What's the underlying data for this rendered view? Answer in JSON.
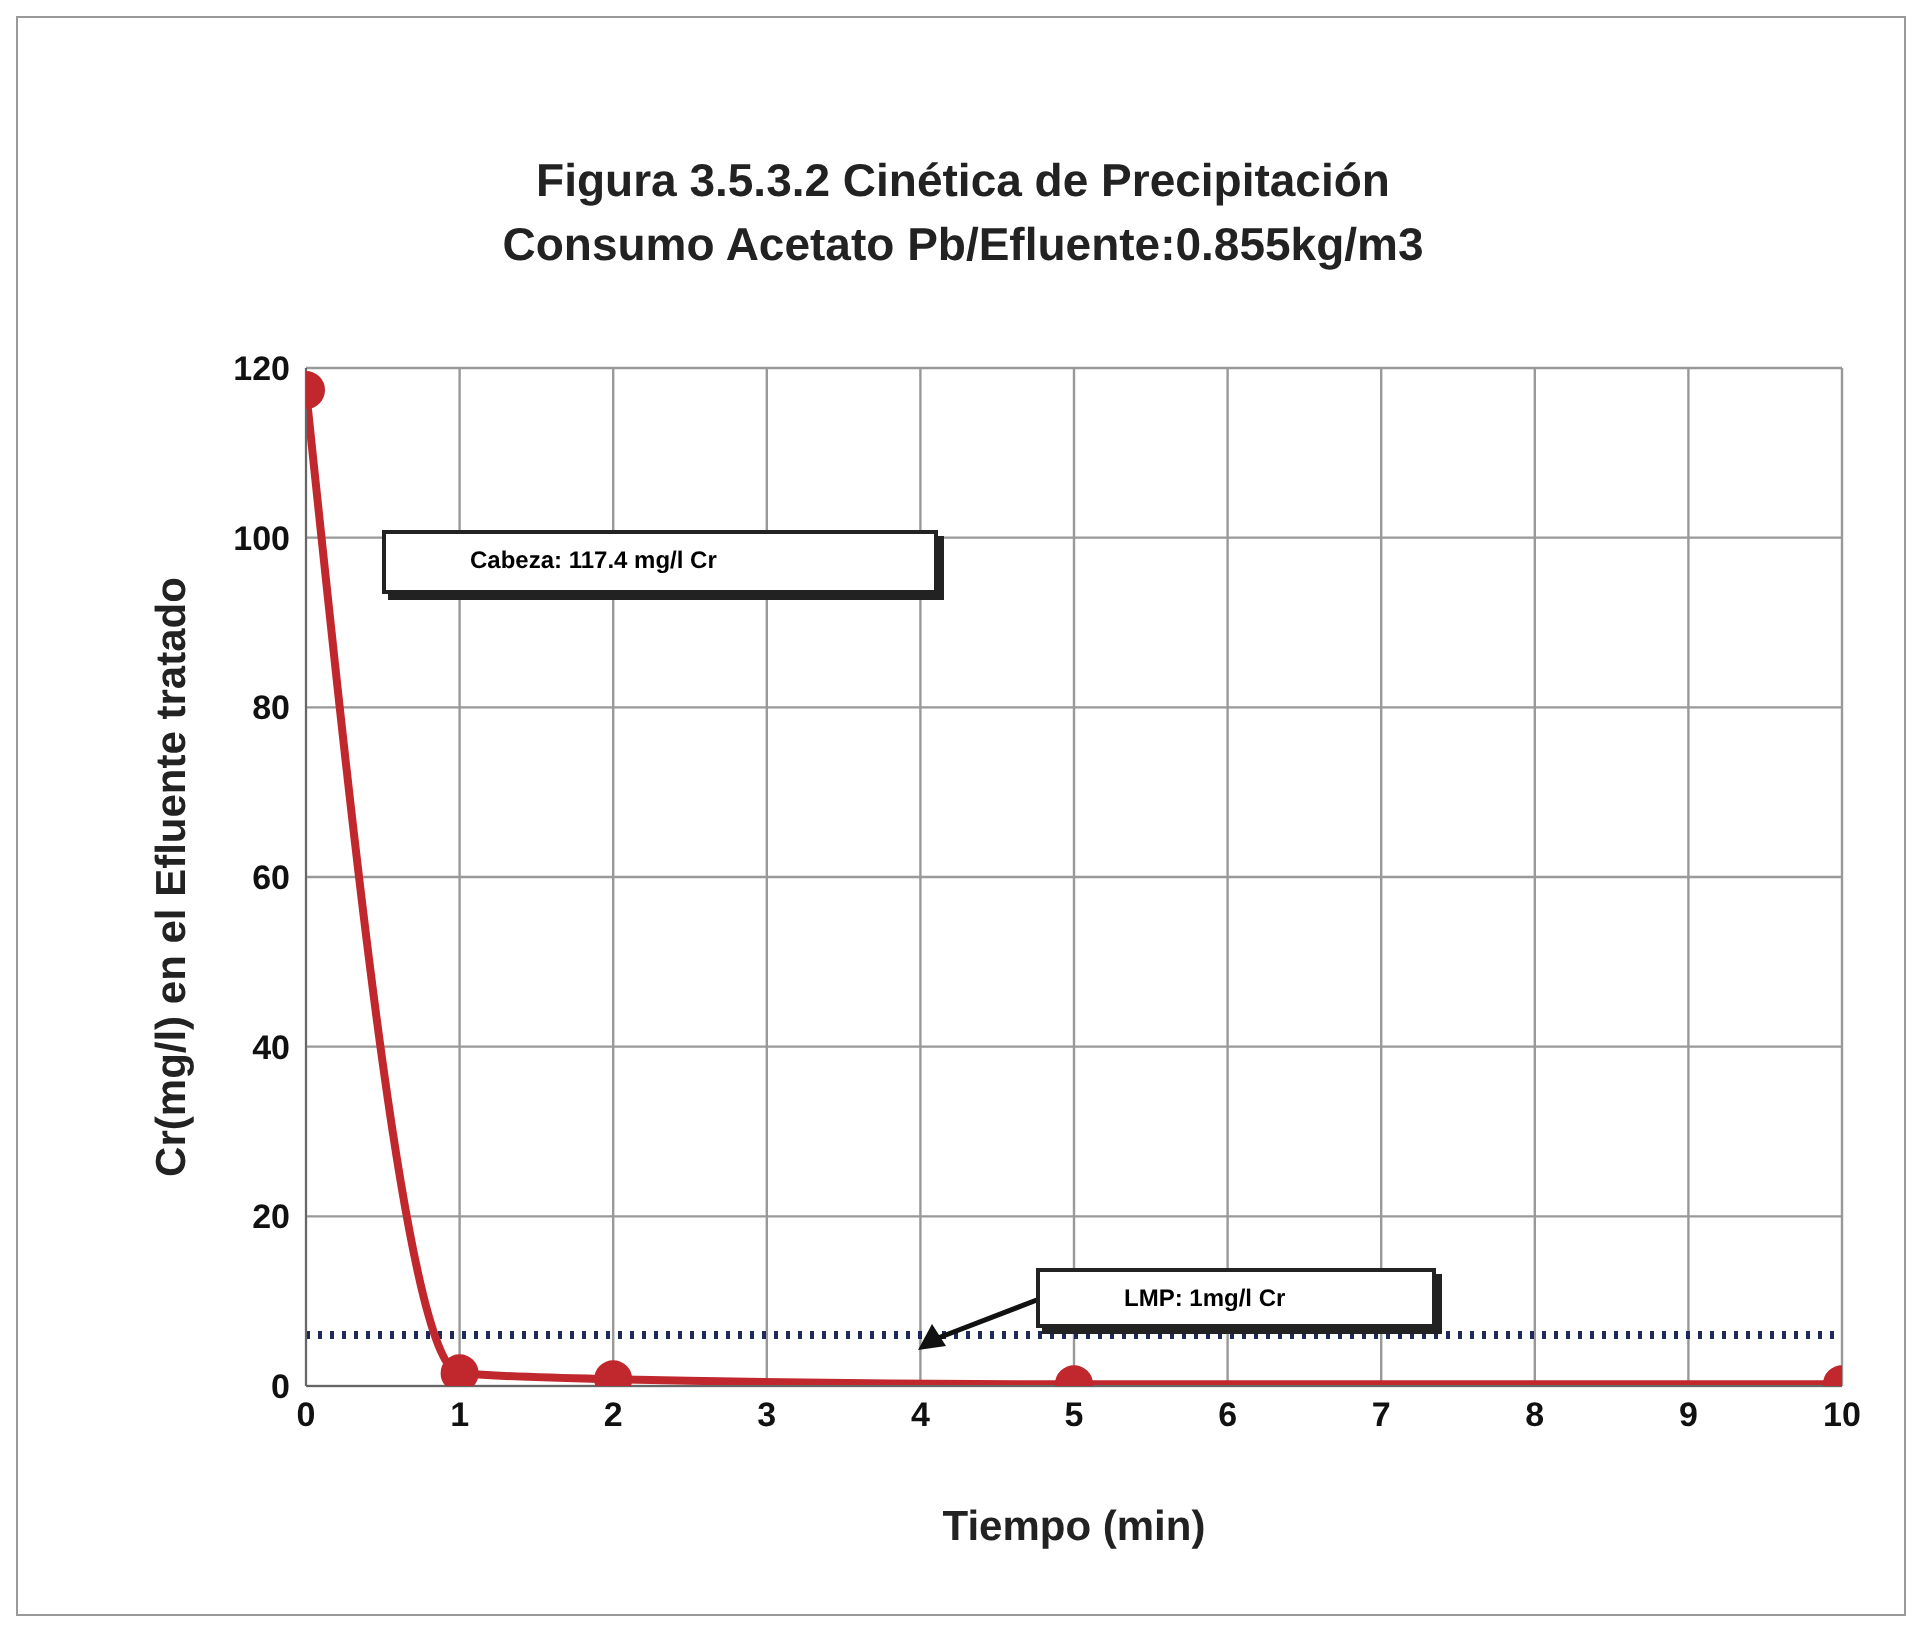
{
  "chart_data": {
    "type": "line",
    "title": "Figura 3.5.3.2 Cinética de Precipitación",
    "subtitle": "Consumo Acetato Pb/Efluente:0.855kg/m3",
    "xlabel": "Tiempo (min)",
    "ylabel": "Cr(mg/l) en el Efluente tratado",
    "x": [
      0,
      1,
      2,
      5,
      10
    ],
    "series": [
      {
        "color": "#c0282d",
        "values": [
          117.4,
          1.5,
          0.8,
          0.2,
          0.2
        ]
      }
    ],
    "xlim": [
      0,
      10
    ],
    "xticks": [
      0,
      1,
      2,
      3,
      4,
      5,
      6,
      7,
      8,
      9,
      10
    ],
    "ylim": [
      0,
      120
    ],
    "yticks": [
      0,
      20,
      40,
      60,
      80,
      100,
      120
    ],
    "grid": true,
    "legend": false,
    "marker": "circle",
    "line_style": "solid",
    "ref_lines": [
      {
        "axis": "y",
        "value": 6,
        "color": "#1f2a5a",
        "line_style": "dotted"
      }
    ],
    "annotations": [
      "Cabeza: 117.4 mg/l Cr",
      "LMP: 1mg/l Cr"
    ]
  }
}
